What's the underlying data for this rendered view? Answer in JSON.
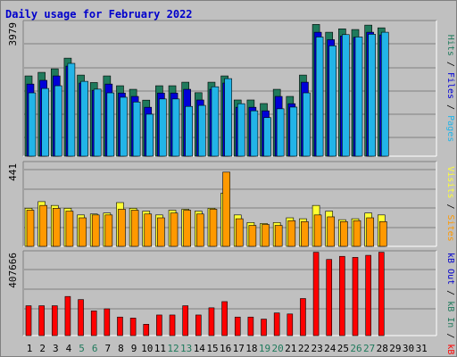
{
  "title": "Daily usage for February 2022",
  "colors": {
    "background": "#c0c0c0",
    "plot": "#c0c0c0",
    "title": "#0000cc",
    "hits": "#1f7a5c",
    "files": "#0000d8",
    "pages": "#22b4e8",
    "visits": "#ffff33",
    "sites": "#ff9900",
    "kbf": "#ff0000",
    "kbin": "#1f7a5c",
    "kbout": "#0000cc",
    "weekend": "#1f7a5c",
    "weekday": "#000000",
    "grid": "#808080"
  },
  "chart_data": [
    {
      "type": "bar",
      "panel": "hits-files-pages",
      "ymax_label": "3979",
      "ylim": [
        0,
        3979
      ],
      "legend": [
        {
          "name": "Pages",
          "key": "pages"
        },
        {
          "name": "Files",
          "key": "files"
        },
        {
          "name": "Hits",
          "key": "hits"
        }
      ],
      "x": [
        1,
        2,
        3,
        4,
        5,
        6,
        7,
        8,
        9,
        10,
        11,
        12,
        13,
        14,
        15,
        16,
        17,
        18,
        19,
        20,
        21,
        22,
        23,
        24,
        25,
        26,
        27,
        28,
        29,
        30,
        31
      ],
      "series": [
        {
          "key": "hits",
          "values": [
            2370,
            2475,
            2580,
            2895,
            2395,
            2175,
            2370,
            2080,
            1975,
            1655,
            2080,
            2080,
            2185,
            1875,
            2185,
            2370,
            1660,
            1660,
            1555,
            1975,
            1765,
            2395,
            3890,
            3660,
            3760,
            3740,
            3870,
            3790,
            0,
            0,
            0
          ]
        },
        {
          "key": "files",
          "values": [
            2130,
            2240,
            2370,
            2660,
            2160,
            1945,
            2130,
            1865,
            1765,
            1445,
            1865,
            1865,
            1975,
            1660,
            1975,
            2160,
            1445,
            1445,
            1340,
            1765,
            1550,
            2185,
            3660,
            3440,
            3550,
            3510,
            3660,
            3580,
            0,
            0,
            0
          ]
        },
        {
          "key": "pages",
          "values": [
            1870,
            2000,
            2080,
            2740,
            2210,
            1980,
            1870,
            1740,
            1600,
            1240,
            1690,
            1690,
            1470,
            1500,
            2050,
            2290,
            1550,
            1340,
            1140,
            1400,
            1450,
            1870,
            3520,
            3260,
            3590,
            3520,
            3600,
            3660,
            0,
            0,
            0
          ]
        }
      ]
    },
    {
      "type": "bar",
      "panel": "visits-sites",
      "ymax_label": "441",
      "ylim": [
        0,
        441
      ],
      "legend": [
        {
          "name": "Sites",
          "key": "sites"
        },
        {
          "name": "Visits",
          "key": "visits"
        }
      ],
      "x": [
        1,
        2,
        3,
        4,
        5,
        6,
        7,
        8,
        9,
        10,
        11,
        12,
        13,
        14,
        15,
        16,
        17,
        18,
        19,
        20,
        21,
        22,
        23,
        24,
        25,
        26,
        27,
        28,
        29,
        30,
        31
      ],
      "series": [
        {
          "key": "visits",
          "values": [
            200,
            235,
            215,
            200,
            165,
            170,
            175,
            230,
            200,
            185,
            165,
            190,
            195,
            185,
            200,
            280,
            165,
            125,
            120,
            125,
            150,
            145,
            215,
            185,
            140,
            145,
            175,
            165,
            0,
            0,
            0
          ]
        },
        {
          "key": "sites",
          "values": [
            190,
            215,
            200,
            185,
            150,
            165,
            165,
            195,
            190,
            170,
            150,
            175,
            190,
            170,
            195,
            390,
            145,
            110,
            115,
            110,
            135,
            130,
            165,
            155,
            130,
            135,
            150,
            130,
            0,
            0,
            0
          ]
        }
      ]
    },
    {
      "type": "bar",
      "panel": "kbf-kbin-kbout",
      "ymax_label": "407666",
      "ylim": [
        0,
        407666
      ],
      "legend": [
        {
          "name": "kB F",
          "key": "kbf"
        },
        {
          "name": "kB In",
          "key": "kbin"
        },
        {
          "name": "kB Out",
          "key": "kbout"
        }
      ],
      "x": [
        1,
        2,
        3,
        4,
        5,
        6,
        7,
        8,
        9,
        10,
        11,
        12,
        13,
        14,
        15,
        16,
        17,
        18,
        19,
        20,
        21,
        22,
        23,
        24,
        25,
        26,
        27,
        28,
        29,
        30,
        31
      ],
      "series": [
        {
          "key": "kbf",
          "values": [
            145000,
            145000,
            145000,
            190000,
            175000,
            120000,
            130000,
            90000,
            85000,
            55000,
            100000,
            100000,
            145000,
            100000,
            135000,
            165000,
            90000,
            90000,
            80000,
            110000,
            105000,
            180000,
            405000,
            370000,
            385000,
            380000,
            390000,
            405000,
            0,
            0,
            0
          ]
        }
      ]
    }
  ],
  "x_labels": [
    "1",
    "2",
    "3",
    "4",
    "5",
    "6",
    "7",
    "8",
    "9",
    "10",
    "11",
    "12",
    "13",
    "14",
    "15",
    "16",
    "17",
    "18",
    "19",
    "20",
    "21",
    "22",
    "23",
    "24",
    "25",
    "26",
    "27",
    "28",
    "29",
    "30",
    "31"
  ],
  "weekend_days": [
    5,
    6,
    12,
    13,
    19,
    20,
    26,
    27
  ]
}
